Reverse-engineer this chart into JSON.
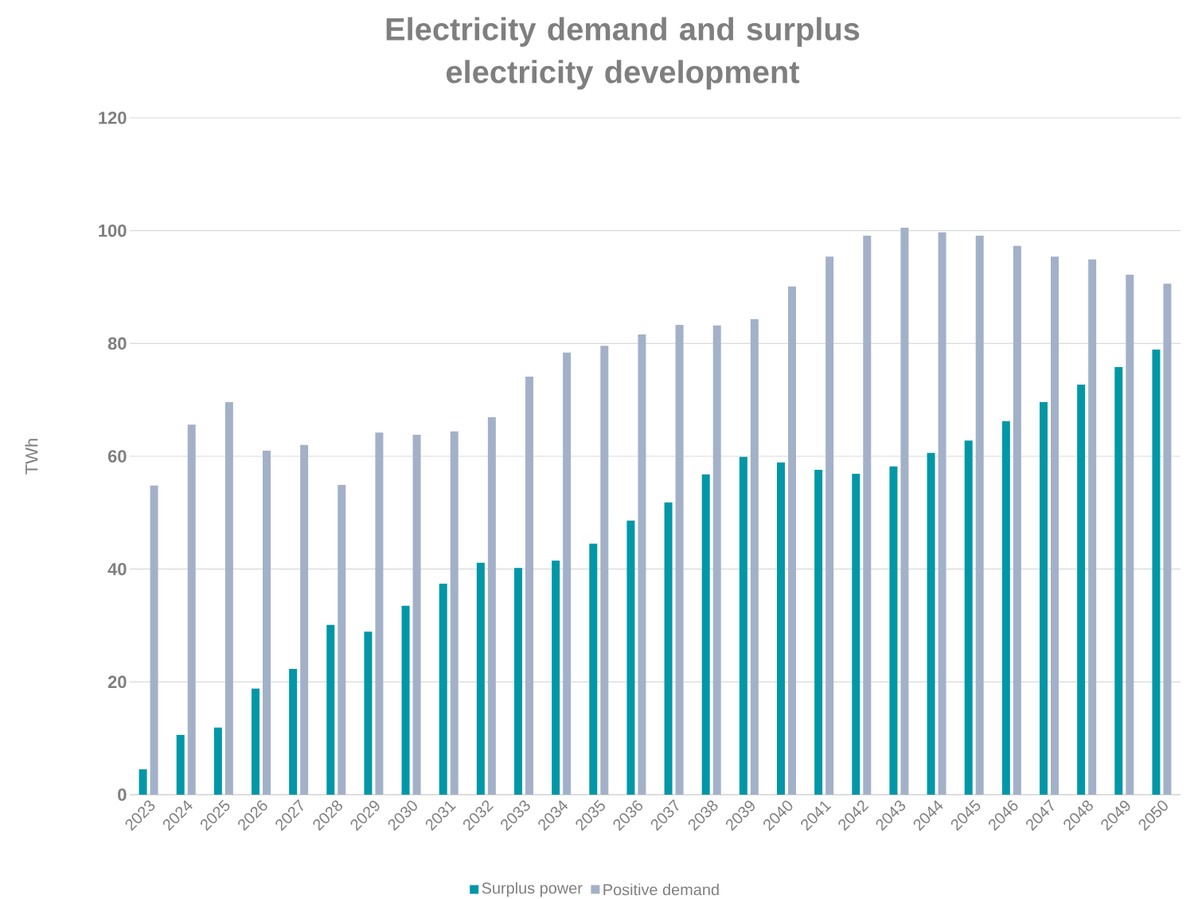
{
  "chart_data": {
    "type": "bar",
    "title": "Electricity demand and surplus electricity development",
    "ylabel": "TWh",
    "categories": [
      "2023",
      "2024",
      "2025",
      "2026",
      "2027",
      "2028",
      "2029",
      "2030",
      "2031",
      "2032",
      "2033",
      "2034",
      "2035",
      "2036",
      "2037",
      "2038",
      "2039",
      "2040",
      "2041",
      "2042",
      "2043",
      "2044",
      "2045",
      "2046",
      "2047",
      "2048",
      "2049",
      "2050"
    ],
    "series": [
      {
        "name": "Surplus power",
        "color": "#0097a7",
        "values": [
          4.5,
          10.6,
          11.9,
          18.8,
          22.3,
          30.1,
          28.9,
          33.5,
          37.4,
          41.1,
          40.2,
          41.5,
          44.5,
          48.6,
          51.8,
          56.8,
          59.9,
          58.9,
          57.6,
          56.9,
          58.2,
          60.6,
          62.8,
          66.2,
          69.6,
          72.7,
          75.8,
          78.9
        ]
      },
      {
        "name": "Positive demand",
        "color": "#a3b1c8",
        "values": [
          54.8,
          65.6,
          69.6,
          61.0,
          62.0,
          54.9,
          64.2,
          63.8,
          64.4,
          66.9,
          74.1,
          78.4,
          79.6,
          81.6,
          83.3,
          83.2,
          84.3,
          90.1,
          95.4,
          99.1,
          100.5,
          99.7,
          99.1,
          97.3,
          95.4,
          94.9,
          92.2,
          90.6
        ]
      }
    ],
    "ylim": [
      0,
      120
    ],
    "yticks": [
      0,
      20,
      40,
      60,
      80,
      100,
      120
    ],
    "grid": "y",
    "legend": "bottom"
  }
}
